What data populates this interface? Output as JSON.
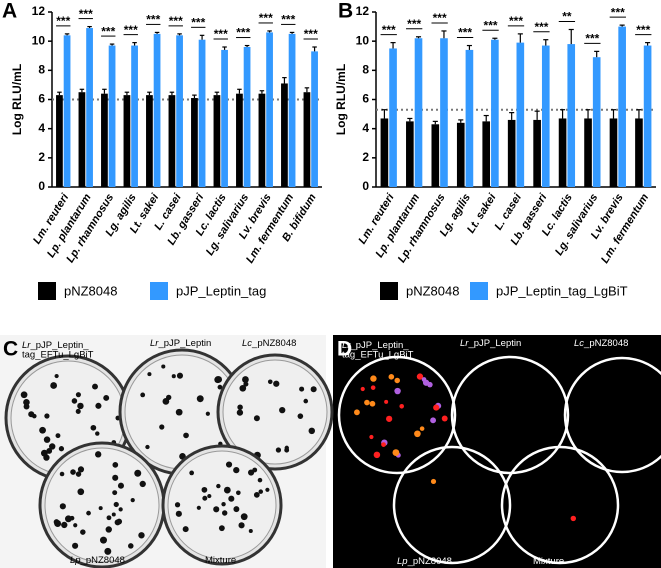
{
  "chart_data": [
    {
      "type": "bar",
      "panel_label": "A",
      "ylabel": "Log RLU/mL",
      "categories": [
        "Lm. reuteri",
        "Lp. plantarum",
        "Lp. rhamnosus",
        "Lg. agilis",
        "Lt. sakei",
        "L. casei",
        "Lb. gasseri",
        "Lc. lactis",
        "Lg. salivarius",
        "Lv. brevis",
        "Lm. fermentum",
        "B. bifidum"
      ],
      "series": [
        {
          "name": "pNZ8048",
          "color": "#000000",
          "values": [
            6.3,
            6.5,
            6.4,
            6.3,
            6.3,
            6.3,
            6.1,
            6.3,
            6.4,
            6.4,
            7.1,
            6.5
          ],
          "errors": [
            0.2,
            0.2,
            0.3,
            0.2,
            0.2,
            0.2,
            0.2,
            0.2,
            0.3,
            0.2,
            0.4,
            0.3
          ]
        },
        {
          "name": "pJP_Leptin_tag",
          "color": "#3399ff",
          "values": [
            10.4,
            10.9,
            9.7,
            9.7,
            10.5,
            10.4,
            10.1,
            9.4,
            9.6,
            10.6,
            10.5,
            9.3
          ],
          "errors": [
            0.1,
            0.1,
            0.1,
            0.2,
            0.1,
            0.1,
            0.3,
            0.2,
            0.1,
            0.1,
            0.1,
            0.3
          ]
        }
      ],
      "significance": [
        "***",
        "***",
        "***",
        "***",
        "***",
        "***",
        "***",
        "***",
        "***",
        "***",
        "***",
        "***"
      ],
      "threshold": 6.0,
      "ylim": [
        0,
        12
      ],
      "yticks": [
        0,
        2,
        4,
        6,
        8,
        10,
        12
      ]
    },
    {
      "type": "bar",
      "panel_label": "B",
      "ylabel": "Log RLU/mL",
      "categories": [
        "Lm. reuteri",
        "Lp. plantarum",
        "Lp. rhamnosus",
        "Lg. agilis",
        "Lt. sakei",
        "L. casei",
        "Lb. gasseri",
        "Lc. lactis",
        "Lg. salivarius",
        "Lv. brevis",
        "Lm. fermentum"
      ],
      "series": [
        {
          "name": "pNZ8048",
          "color": "#000000",
          "values": [
            4.7,
            4.5,
            4.3,
            4.4,
            4.5,
            4.6,
            4.6,
            4.7,
            4.7,
            4.7,
            4.7
          ],
          "errors": [
            0.6,
            0.2,
            0.2,
            0.2,
            0.4,
            0.5,
            0.6,
            0.6,
            0.6,
            0.6,
            0.6
          ]
        },
        {
          "name": "pJP_Leptin_tag_LgBiT",
          "color": "#3399ff",
          "values": [
            9.5,
            10.2,
            10.2,
            9.4,
            10.1,
            9.9,
            9.7,
            9.8,
            8.9,
            11.0,
            9.7
          ],
          "errors": [
            0.4,
            0.1,
            0.5,
            0.3,
            0.1,
            0.6,
            0.4,
            1.0,
            0.4,
            0.1,
            0.2
          ]
        }
      ],
      "significance": [
        "***",
        "***",
        "***",
        "***",
        "***",
        "***",
        "***",
        "**",
        "***",
        "***",
        "***"
      ],
      "threshold": 5.3,
      "ylim": [
        0,
        12
      ],
      "yticks": [
        0,
        2,
        4,
        6,
        8,
        10,
        12
      ]
    }
  ],
  "images": [
    {
      "panel_label": "C",
      "plates": [
        {
          "italic": "Lr",
          "lines": [
            "_pJP_Leptin_",
            "tag_EFTu_LgBiT"
          ]
        },
        {
          "italic": "Lr",
          "lines": [
            "_pJP_Leptin"
          ]
        },
        {
          "italic": "Lc",
          "lines": [
            "_pNZ8048"
          ]
        },
        {
          "italic": "Lp",
          "lines": [
            "_pNZ8048"
          ]
        },
        {
          "lines": [
            "Mixture"
          ]
        }
      ]
    },
    {
      "panel_label": "D",
      "plates": [
        {
          "italic": "Lr",
          "lines": [
            "_pJP_Leptin_",
            "tag_EFTu_LgBiT"
          ]
        },
        {
          "italic": "Lr",
          "lines": [
            "_pJP_Leptin"
          ]
        },
        {
          "italic": "Lc",
          "lines": [
            "_pNZ8048"
          ]
        },
        {
          "italic": "Lp",
          "lines": [
            "_pNZ8048"
          ]
        },
        {
          "lines": [
            "Mixture"
          ]
        }
      ]
    }
  ]
}
